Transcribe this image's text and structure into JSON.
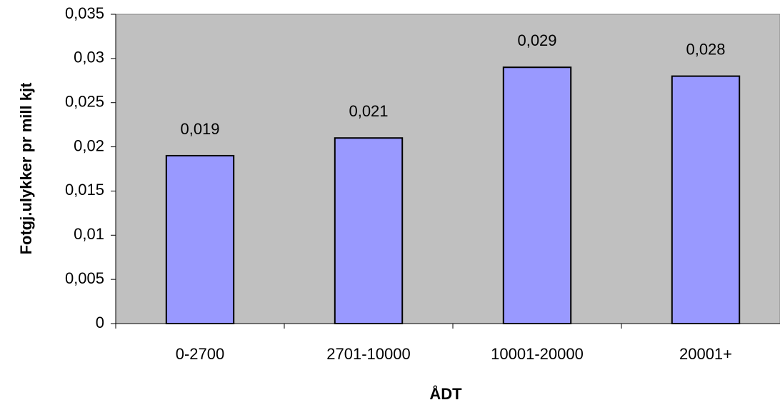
{
  "chart_data": {
    "type": "bar",
    "xlabel": "ÅDT",
    "ylabel": "Fotgj.ulykker pr mill kjt",
    "categories": [
      "0-2700",
      "2701-10000",
      "10001-20000",
      "20001+"
    ],
    "values": [
      0.019,
      0.021,
      0.029,
      0.028
    ],
    "value_labels": [
      "0,019",
      "0,021",
      "0,029",
      "0,028"
    ],
    "color": "#9999ff",
    "plot_background": "#c0c0c0",
    "ylim": [
      0,
      0.035
    ],
    "yticks": [
      0,
      {
        "value": 0.005,
        "label": "0,005"
      },
      {
        "value": 0.01,
        "label": "0,01"
      },
      {
        "value": 0.015,
        "label": "0,015"
      },
      {
        "value": 0.02,
        "label": "0,02"
      },
      {
        "value": 0.025,
        "label": "0,025"
      },
      {
        "value": 0.03,
        "label": "0,03"
      },
      {
        "value": 0.035,
        "label": "0,035"
      }
    ],
    "grid": false
  }
}
